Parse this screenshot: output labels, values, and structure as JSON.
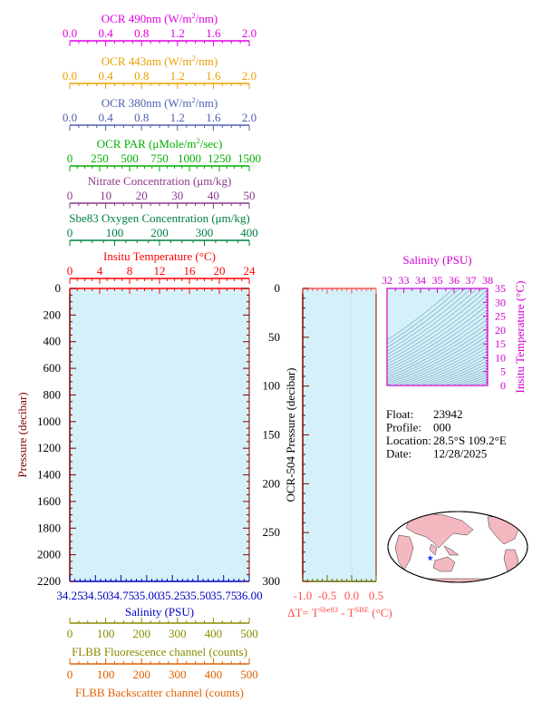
{
  "colors": {
    "ocr490": "#e000e0",
    "ocr443": "#e8a000",
    "ocr380": "#5060b0",
    "par": "#00b000",
    "nitrate": "#8a3a8a",
    "oxygen": "#008040",
    "temperature": "#ff0000",
    "salinity": "#0000c0",
    "fluorescence": "#8a8a00",
    "backscatter": "#e06000",
    "pressure": "#800000",
    "deltaT": "#ff5050",
    "deltaAxis": "#6a6a00",
    "tsAxis": "#d000d0",
    "plotFill": "#d4f0f8",
    "contour": "#5a8aa8",
    "land": "#f4b8c0",
    "ocean": "#ffffff",
    "floatMarker": "#2040ff"
  },
  "chart_data": [
    {
      "type": "line",
      "name": "main-profile",
      "ylabel": "Pressure (decibar)",
      "ylim": [
        2200,
        0
      ],
      "yticks": [
        0,
        200,
        400,
        600,
        800,
        1000,
        1200,
        1400,
        1600,
        1800,
        2000,
        2200
      ],
      "top_axes": [
        {
          "key": "ocr490",
          "label_pre": "OCR 490nm (W/m",
          "label_sup": "2",
          "label_post": "/nm)",
          "range": [
            0,
            2
          ],
          "ticks": [
            "0.0",
            "0.4",
            "0.8",
            "1.2",
            "1.6",
            "2.0"
          ],
          "color_key": "ocr490"
        },
        {
          "key": "ocr443",
          "label_pre": "OCR 443nm (W/m",
          "label_sup": "2",
          "label_post": "/nm)",
          "range": [
            0,
            2
          ],
          "ticks": [
            "0.0",
            "0.4",
            "0.8",
            "1.2",
            "1.6",
            "2.0"
          ],
          "color_key": "ocr443"
        },
        {
          "key": "ocr380",
          "label_pre": "OCR 380nm (W/m",
          "label_sup": "2",
          "label_post": "/nm)",
          "range": [
            0,
            2
          ],
          "ticks": [
            "0.0",
            "0.4",
            "0.8",
            "1.2",
            "1.6",
            "2.0"
          ],
          "color_key": "ocr380"
        },
        {
          "key": "par",
          "label_pre": "OCR PAR (μMole/m",
          "label_sup": "2",
          "label_post": "/sec)",
          "range": [
            0,
            1500
          ],
          "ticks": [
            "0",
            "250",
            "500",
            "750",
            "1000",
            "1250",
            "1500"
          ],
          "color_key": "par"
        },
        {
          "key": "nitrate",
          "label_pre": "Nitrate Concentration (μm/kg)",
          "label_sup": "",
          "label_post": "",
          "range": [
            0,
            50
          ],
          "ticks": [
            "0",
            "10",
            "20",
            "30",
            "40",
            "50"
          ],
          "color_key": "nitrate"
        },
        {
          "key": "oxygen",
          "label_pre": "Sbe83 Oxygen Concentration (μm/kg)",
          "label_sup": "",
          "label_post": "",
          "range": [
            0,
            400
          ],
          "ticks": [
            "0",
            "100",
            "200",
            "300",
            "400"
          ],
          "color_key": "oxygen"
        },
        {
          "key": "temperature",
          "label_pre": "Insitu Temperature (°C)",
          "label_sup": "",
          "label_post": "",
          "range": [
            0,
            24
          ],
          "ticks": [
            "0",
            "4",
            "8",
            "12",
            "16",
            "20",
            "24"
          ],
          "color_key": "temperature"
        }
      ],
      "bottom_axes": [
        {
          "key": "salinity",
          "label": "Salinity (PSU)",
          "range": [
            34.25,
            36.0
          ],
          "ticks": [
            "34.25",
            "34.50",
            "34.75",
            "35.00",
            "35.25",
            "35.50",
            "35.75",
            "36.00"
          ],
          "color_key": "salinity"
        },
        {
          "key": "fluorescence",
          "label": "FLBB Fluorescence channel (counts)",
          "range": [
            0,
            500
          ],
          "ticks": [
            "0",
            "100",
            "200",
            "300",
            "400",
            "500"
          ],
          "color_key": "fluorescence"
        },
        {
          "key": "backscatter",
          "label": "FLBB Backscatter channel (counts)",
          "range": [
            0,
            500
          ],
          "ticks": [
            "0",
            "100",
            "200",
            "300",
            "400",
            "500"
          ],
          "color_key": "backscatter"
        }
      ],
      "series": []
    },
    {
      "type": "line",
      "name": "ocr-pressure-delta",
      "ylabel": "OCR-504 Pressure (decibar)",
      "ylim": [
        300,
        0
      ],
      "yticks": [
        0,
        50,
        100,
        150,
        200,
        250,
        300
      ],
      "xlim": [
        -1.0,
        0.5
      ],
      "xticks": [
        "-1.0",
        "-0.5",
        "0.0",
        "0.5"
      ],
      "xlabel_pre": "ΔT= T",
      "xlabel_sup1": "Sbe83",
      "xlabel_mid": " - T",
      "xlabel_sup2": "SBE",
      "xlabel_post": " (°C)",
      "series": []
    },
    {
      "type": "scatter",
      "name": "ts-diagram",
      "xlabel": "Salinity (PSU)",
      "ylabel": "Insitu Temperature (°C)",
      "xlim": [
        32,
        38
      ],
      "ylim": [
        0,
        35
      ],
      "xticks": [
        "32",
        "33",
        "34",
        "35",
        "36",
        "37",
        "38"
      ],
      "yticks": [
        "0",
        "5",
        "10",
        "15",
        "20",
        "25",
        "30",
        "35"
      ],
      "series": []
    }
  ],
  "info": {
    "float_label": "Float:",
    "float_value": "23942",
    "profile_label": "Profile:",
    "profile_value": "000",
    "location_label": "Location:",
    "location_value": "28.5°S  109.2°E",
    "date_label": "Date:",
    "date_value": "12/28/2025"
  },
  "map": {
    "float_lat": -28.5,
    "float_lon": 109.2
  }
}
